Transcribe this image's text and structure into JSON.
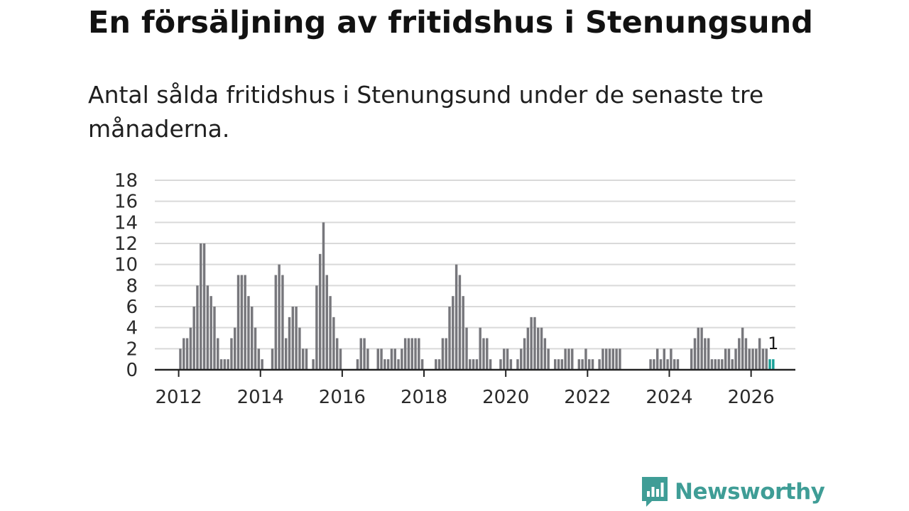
{
  "header": {
    "title": "En försäljning av fritidshus i Stenungsund",
    "subtitle": "Antal sålda fritidshus i Stenungsund under de senaste tre månaderna."
  },
  "brand": {
    "name": "Newsworthy",
    "color": "#3f9d96"
  },
  "colors": {
    "bar": "#77777c",
    "highlight": "#1aa198",
    "grid": "#d9d9d9",
    "axis": "#222222"
  },
  "chart_data": {
    "type": "bar",
    "x_ticks": [
      "2012",
      "2014",
      "2016",
      "2018",
      "2020",
      "2022",
      "2024",
      "2026"
    ],
    "y_ticks": [
      "0",
      "2",
      "4",
      "6",
      "8",
      "10",
      "12",
      "14",
      "16",
      "18"
    ],
    "ylim": [
      0,
      18
    ],
    "xlim": [
      "2011-06",
      "2027-02"
    ],
    "grid": true,
    "start_month": "2012-01",
    "values": [
      2,
      3,
      3,
      4,
      6,
      8,
      12,
      12,
      8,
      7,
      6,
      3,
      1,
      1,
      1,
      3,
      4,
      9,
      9,
      9,
      7,
      6,
      4,
      2,
      1,
      0,
      0,
      2,
      9,
      10,
      9,
      3,
      5,
      6,
      6,
      4,
      2,
      2,
      0,
      1,
      8,
      11,
      14,
      9,
      7,
      5,
      3,
      2,
      0,
      0,
      0,
      0,
      1,
      3,
      3,
      2,
      0,
      0,
      2,
      2,
      1,
      1,
      2,
      2,
      1,
      2,
      3,
      3,
      3,
      3,
      3,
      1,
      0,
      0,
      0,
      1,
      1,
      3,
      3,
      6,
      7,
      10,
      9,
      7,
      4,
      1,
      1,
      1,
      4,
      3,
      3,
      1,
      0,
      0,
      1,
      2,
      2,
      1,
      0,
      1,
      2,
      3,
      4,
      5,
      5,
      4,
      4,
      3,
      2,
      0,
      1,
      1,
      1,
      2,
      2,
      2,
      0,
      1,
      1,
      2,
      1,
      1,
      0,
      1,
      2,
      2,
      2,
      2,
      2,
      2,
      0,
      0,
      0,
      0,
      0,
      0,
      0,
      0,
      1,
      1,
      2,
      1,
      2,
      1,
      2,
      1,
      1,
      0,
      0,
      0,
      2,
      3,
      4,
      4,
      3,
      3,
      1,
      1,
      1,
      1,
      2,
      2,
      1,
      2,
      3,
      4,
      3,
      2,
      2,
      2,
      3,
      2,
      2,
      1,
      1
    ],
    "highlight_last": 2,
    "last_label": "1"
  }
}
